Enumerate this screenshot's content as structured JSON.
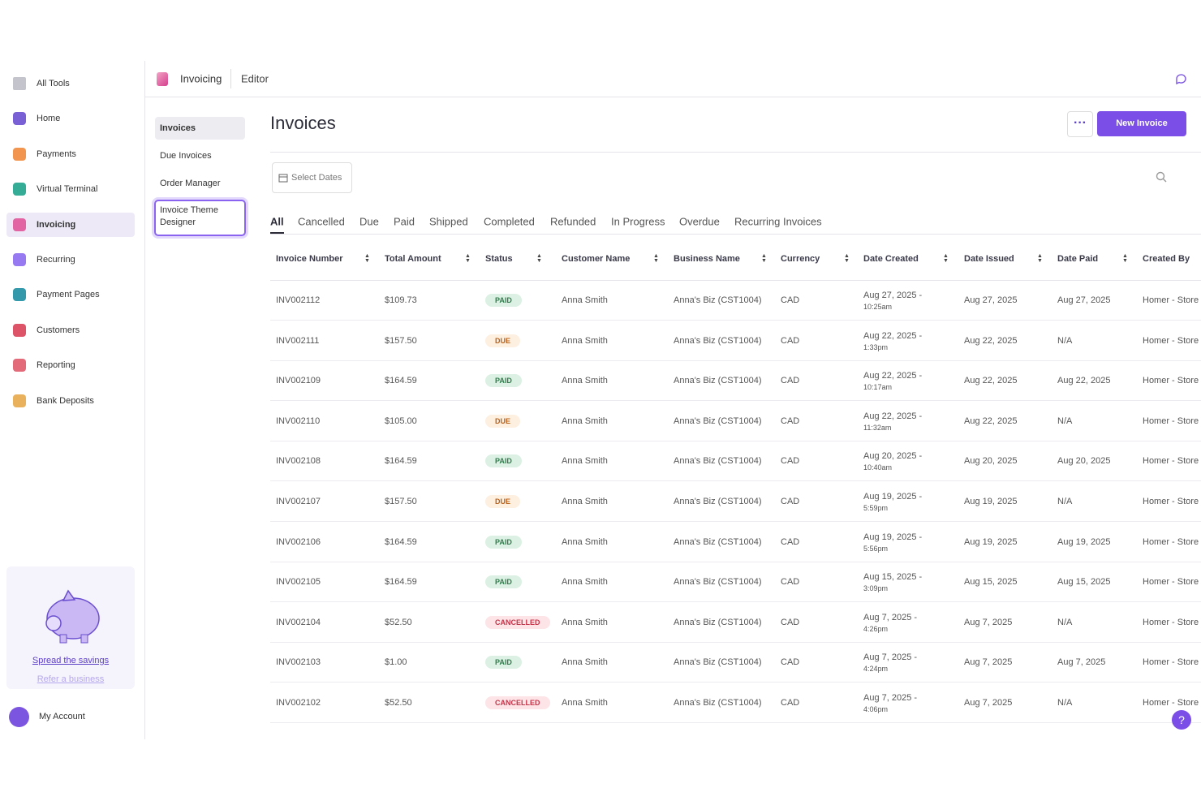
{
  "sidebar": {
    "items": [
      "All Tools",
      "Home",
      "Payments",
      "Virtual Terminal",
      "Invoicing",
      "Recurring",
      "Payment Pages",
      "Customers",
      "Reporting",
      "Bank Deposits"
    ],
    "active": 4,
    "promo": {
      "link": "Spread the savings",
      "sublink": "Refer a business"
    },
    "account": "My Account"
  },
  "topbar": {
    "app": "Invoicing",
    "editor": "Editor"
  },
  "subnav": {
    "items": [
      "Invoices",
      "Due Invoices",
      "Order Manager",
      "Invoice Theme Designer"
    ]
  },
  "header": {
    "title": "Invoices",
    "new_button": "New Invoice",
    "date_filter": "Select Dates"
  },
  "tabs": {
    "items": [
      "All",
      "Cancelled",
      "Due",
      "Paid",
      "Shipped",
      "Completed",
      "Refunded",
      "In Progress",
      "Overdue",
      "Recurring Invoices"
    ],
    "active": 0
  },
  "table": {
    "columns": [
      "Invoice Number",
      "Total Amount",
      "Status",
      "Customer Name",
      "Business Name",
      "Currency",
      "Date Created",
      "Date Issued",
      "Date Paid",
      "Created By"
    ],
    "rows": [
      {
        "invoice": "INV002112",
        "amount": "$109.73",
        "status": {
          "label": "PAID",
          "color": "#2f7d4c",
          "background": "#dcf1e3"
        },
        "customer": "Anna Smith",
        "business": "Anna's Biz (CST1004)",
        "currency": "CAD",
        "created": "Aug 27, 2025 -",
        "created_time": "10:25am",
        "issued": "Aug 27, 2025",
        "paid": "Aug 27, 2025",
        "created_by": "Homer - Store"
      },
      {
        "invoice": "INV002111",
        "amount": "$157.50",
        "status": {
          "label": "DUE",
          "color": "#b8621b",
          "background": "#fdf0e1"
        },
        "customer": "Anna Smith",
        "business": "Anna's Biz (CST1004)",
        "currency": "CAD",
        "created": "Aug 22, 2025 -",
        "created_time": "1:33pm",
        "issued": "Aug 22, 2025",
        "paid": "N/A",
        "created_by": "Homer - Store"
      },
      {
        "invoice": "INV002109",
        "amount": "$164.59",
        "status": {
          "label": "PAID",
          "color": "#2f7d4c",
          "background": "#dcf1e3"
        },
        "customer": "Anna Smith",
        "business": "Anna's Biz (CST1004)",
        "currency": "CAD",
        "created": "Aug 22, 2025 -",
        "created_time": "10:17am",
        "issued": "Aug 22, 2025",
        "paid": "Aug 22, 2025",
        "created_by": "Homer - Store"
      },
      {
        "invoice": "INV002110",
        "amount": "$105.00",
        "status": {
          "label": "DUE",
          "color": "#b8621b",
          "background": "#fdf0e1"
        },
        "customer": "Anna Smith",
        "business": "Anna's Biz (CST1004)",
        "currency": "CAD",
        "created": "Aug 22, 2025 -",
        "created_time": "11:32am",
        "issued": "Aug 22, 2025",
        "paid": "N/A",
        "created_by": "Homer - Store"
      },
      {
        "invoice": "INV002108",
        "amount": "$164.59",
        "status": {
          "label": "PAID",
          "color": "#2f7d4c",
          "background": "#dcf1e3"
        },
        "customer": "Anna Smith",
        "business": "Anna's Biz (CST1004)",
        "currency": "CAD",
        "created": "Aug 20, 2025 -",
        "created_time": "10:40am",
        "issued": "Aug 20, 2025",
        "paid": "Aug 20, 2025",
        "created_by": "Homer - Store"
      },
      {
        "invoice": "INV002107",
        "amount": "$157.50",
        "status": {
          "label": "DUE",
          "color": "#b8621b",
          "background": "#fdf0e1"
        },
        "customer": "Anna Smith",
        "business": "Anna's Biz (CST1004)",
        "currency": "CAD",
        "created": "Aug 19, 2025 -",
        "created_time": "5:59pm",
        "issued": "Aug 19, 2025",
        "paid": "N/A",
        "created_by": "Homer - Store"
      },
      {
        "invoice": "INV002106",
        "amount": "$164.59",
        "status": {
          "label": "PAID",
          "color": "#2f7d4c",
          "background": "#dcf1e3"
        },
        "customer": "Anna Smith",
        "business": "Anna's Biz (CST1004)",
        "currency": "CAD",
        "created": "Aug 19, 2025 -",
        "created_time": "5:56pm",
        "issued": "Aug 19, 2025",
        "paid": "Aug 19, 2025",
        "created_by": "Homer - Store"
      },
      {
        "invoice": "INV002105",
        "amount": "$164.59",
        "status": {
          "label": "PAID",
          "color": "#2f7d4c",
          "background": "#dcf1e3"
        },
        "customer": "Anna Smith",
        "business": "Anna's Biz (CST1004)",
        "currency": "CAD",
        "created": "Aug 15, 2025 -",
        "created_time": "3:09pm",
        "issued": "Aug 15, 2025",
        "paid": "Aug 15, 2025",
        "created_by": "Homer - Store"
      },
      {
        "invoice": "INV002104",
        "amount": "$52.50",
        "status": {
          "label": "CANCELLED",
          "color": "#c2374b",
          "background": "#fce4e7"
        },
        "customer": "Anna Smith",
        "business": "Anna's Biz (CST1004)",
        "currency": "CAD",
        "created": "Aug 7, 2025 -",
        "created_time": "4:26pm",
        "issued": "Aug 7, 2025",
        "paid": "N/A",
        "created_by": "Homer - Store"
      },
      {
        "invoice": "INV002103",
        "amount": "$1.00",
        "status": {
          "label": "PAID",
          "color": "#2f7d4c",
          "background": "#dcf1e3"
        },
        "customer": "Anna Smith",
        "business": "Anna's Biz (CST1004)",
        "currency": "CAD",
        "created": "Aug 7, 2025 -",
        "created_time": "4:24pm",
        "issued": "Aug 7, 2025",
        "paid": "Aug 7, 2025",
        "created_by": "Homer - Store"
      },
      {
        "invoice": "INV002102",
        "amount": "$52.50",
        "status": {
          "label": "CANCELLED",
          "color": "#c2374b",
          "background": "#fce4e7"
        },
        "customer": "Anna Smith",
        "business": "Anna's Biz (CST1004)",
        "currency": "CAD",
        "created": "Aug 7, 2025 -",
        "created_time": "4:06pm",
        "issued": "Aug 7, 2025",
        "paid": "N/A",
        "created_by": "Homer - Store"
      }
    ]
  }
}
